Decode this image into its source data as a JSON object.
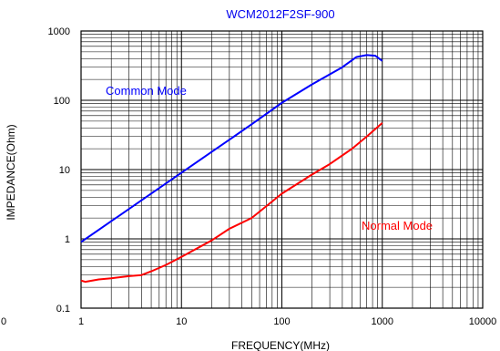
{
  "chart_data": {
    "type": "line",
    "title": "WCM2012F2SF-900",
    "xlabel": "FREQUENCY(MHz)",
    "ylabel": "IMPEDANCE(Ohm)",
    "xscale": "log",
    "yscale": "log",
    "xlim": [
      1,
      10000
    ],
    "ylim": [
      0.1,
      1000
    ],
    "grid": true,
    "x_tick_labels": [
      "1",
      "10",
      "100",
      "1000",
      "10000"
    ],
    "y_tick_labels": [
      "0.1",
      "1",
      "10",
      "100",
      "1000"
    ],
    "extra_tick_labels": [
      "0"
    ],
    "series": [
      {
        "name": "Common Mode",
        "color": "#0000ff",
        "points": [
          [
            1,
            0.9
          ],
          [
            2,
            1.8
          ],
          [
            5,
            4.5
          ],
          [
            10,
            9
          ],
          [
            20,
            18
          ],
          [
            50,
            45
          ],
          [
            100,
            92
          ],
          [
            200,
            170
          ],
          [
            400,
            300
          ],
          [
            550,
            420
          ],
          [
            700,
            450
          ],
          [
            850,
            440
          ],
          [
            1000,
            370
          ]
        ]
      },
      {
        "name": "Normal Mode",
        "color": "#ff0000",
        "points": [
          [
            1,
            0.25
          ],
          [
            1.1,
            0.24
          ],
          [
            1.5,
            0.26
          ],
          [
            2,
            0.27
          ],
          [
            3,
            0.29
          ],
          [
            4,
            0.3
          ],
          [
            5,
            0.34
          ],
          [
            7,
            0.42
          ],
          [
            10,
            0.55
          ],
          [
            20,
            0.95
          ],
          [
            30,
            1.4
          ],
          [
            50,
            2.0
          ],
          [
            100,
            4.5
          ],
          [
            200,
            8.5
          ],
          [
            300,
            12
          ],
          [
            500,
            20
          ],
          [
            700,
            30
          ],
          [
            1000,
            47
          ]
        ]
      }
    ]
  }
}
